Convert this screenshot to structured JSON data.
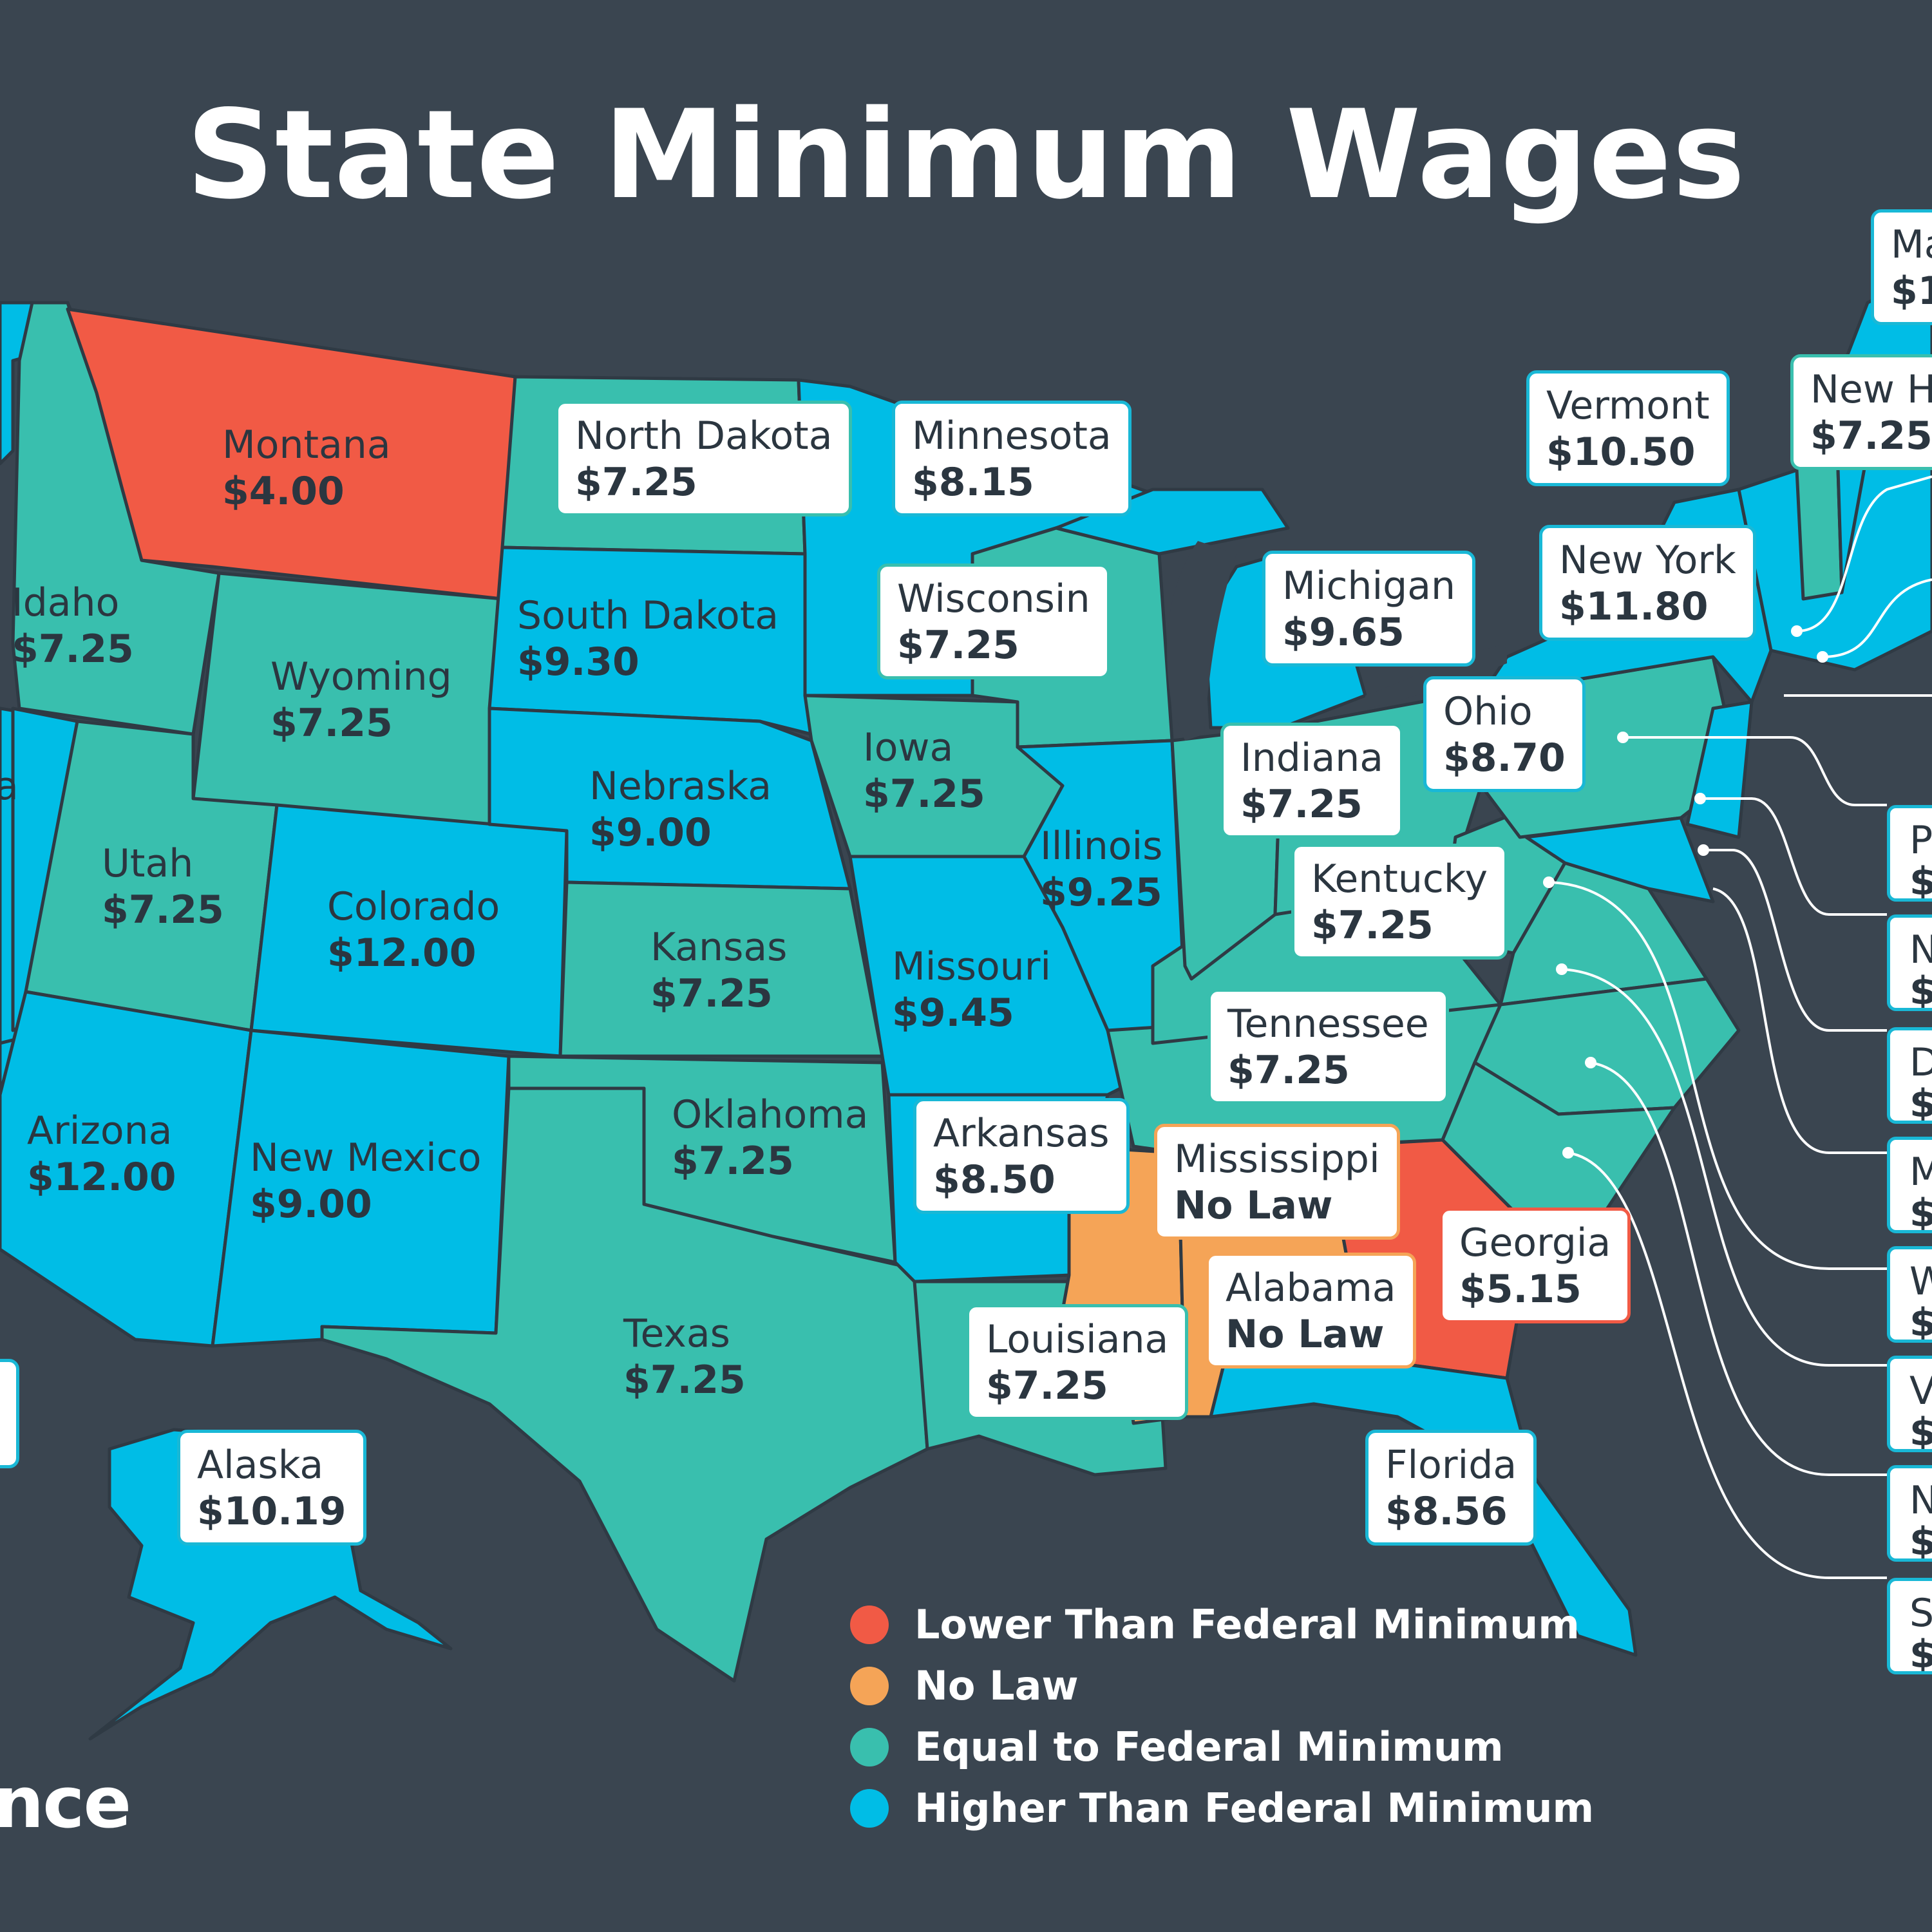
{
  "title": "State Minimum Wages",
  "colors": {
    "background": "#3a4550",
    "lower": "#f15a45",
    "no_law": "#f5a457",
    "equal": "#39bfae",
    "higher": "#00bde6"
  },
  "legend": [
    {
      "label": "Lower Than Federal Minimum",
      "color": "#f15a45"
    },
    {
      "label": "No Law",
      "color": "#f5a457"
    },
    {
      "label": "Equal to Federal Minimum",
      "color": "#39bfae"
    },
    {
      "label": "Higher Than Federal Minimum",
      "color": "#00bde6"
    }
  ],
  "states": {
    "montana": {
      "name": "Montana",
      "value": "$4.00"
    },
    "idaho": {
      "name": "Idaho",
      "value": "$7.25"
    },
    "wyoming": {
      "name": "Wyoming",
      "value": "$7.25"
    },
    "utah": {
      "name": "Utah",
      "value": "$7.25"
    },
    "colorado": {
      "name": "Colorado",
      "value": "$12.00"
    },
    "arizona": {
      "name": "Arizona",
      "value": "$12.00"
    },
    "new_mexico": {
      "name": "New Mexico",
      "value": "$9.00"
    },
    "north_dakota": {
      "name": "North Dakota",
      "value": "$7.25"
    },
    "south_dakota": {
      "name": "South Dakota",
      "value": "$9.30"
    },
    "nebraska": {
      "name": "Nebraska",
      "value": "$9.00"
    },
    "kansas": {
      "name": "Kansas",
      "value": "$7.25"
    },
    "oklahoma": {
      "name": "Oklahoma",
      "value": "$7.25"
    },
    "texas": {
      "name": "Texas",
      "value": "$7.25"
    },
    "minnesota": {
      "name": "Minnesota",
      "value": "$8.15"
    },
    "wisconsin": {
      "name": "Wisconsin",
      "value": "$7.25"
    },
    "iowa": {
      "name": "Iowa",
      "value": "$7.25"
    },
    "illinois": {
      "name": "Illinois",
      "value": "$9.25"
    },
    "missouri": {
      "name": "Missouri",
      "value": "$9.45"
    },
    "arkansas": {
      "name": "Arkansas",
      "value": "$8.50"
    },
    "louisiana": {
      "name": "Louisiana",
      "value": "$7.25"
    },
    "mississippi": {
      "name": "Mississippi",
      "value": "No Law"
    },
    "alabama": {
      "name": "Alabama",
      "value": "No Law"
    },
    "georgia": {
      "name": "Georgia",
      "value": "$5.15"
    },
    "florida": {
      "name": "Florida",
      "value": "$8.56"
    },
    "tennessee": {
      "name": "Tennessee",
      "value": "$7.25"
    },
    "kentucky": {
      "name": "Kentucky",
      "value": "$7.25"
    },
    "indiana": {
      "name": "Indiana",
      "value": "$7.25"
    },
    "ohio": {
      "name": "Ohio",
      "value": "$8.70"
    },
    "michigan": {
      "name": "Michigan",
      "value": "$9.65"
    },
    "new_york": {
      "name": "New York",
      "value": "$11.80"
    },
    "vermont": {
      "name": "Vermont",
      "value": "$10.50"
    },
    "new_hampshire": {
      "name": "New H",
      "value": "$7.25"
    },
    "maine": {
      "name": "Ma",
      "value": "$1"
    },
    "alaska": {
      "name": "Alaska",
      "value": "$10.19"
    }
  },
  "side_tags": [
    {
      "name": "P",
      "value": "$"
    },
    {
      "name": "N",
      "value": "$"
    },
    {
      "name": "D",
      "value": "$"
    },
    {
      "name": "M",
      "value": "$"
    },
    {
      "name": "W",
      "value": "$"
    },
    {
      "name": "V",
      "value": "$"
    },
    {
      "name": "N",
      "value": "$"
    },
    {
      "name": "S",
      "value": "$"
    }
  ],
  "left_partial": {
    "name": "a"
  },
  "logo": "nce"
}
